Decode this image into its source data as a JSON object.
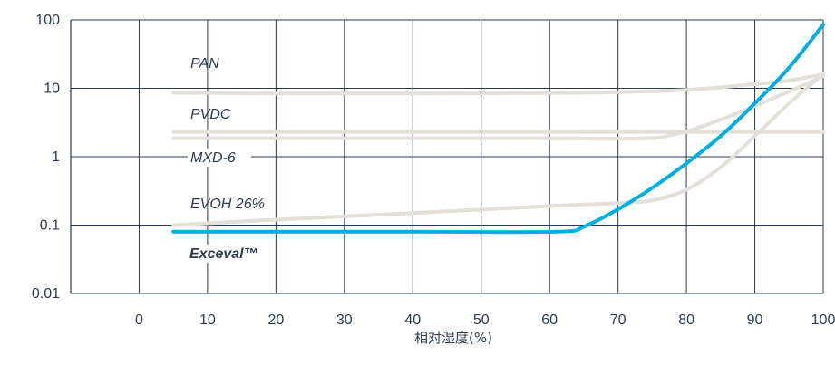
{
  "chart_data": {
    "type": "line",
    "xlabel": "相对湿度(%)",
    "ylabel": "",
    "title": "",
    "x_ticks": [
      "0",
      "10",
      "20",
      "30",
      "40",
      "50",
      "60",
      "70",
      "80",
      "90",
      "100"
    ],
    "y_ticks": [
      "0.01",
      "0.1",
      "1",
      "10",
      "100"
    ],
    "xlim": [
      -10,
      100
    ],
    "ylim": [
      0.01,
      100
    ],
    "y_scale": "log",
    "grid": "both",
    "colors": {
      "highlight": "#00afe0",
      "other": "#e3e0da",
      "axis": "#2b3a55",
      "grid": "#2b3a55"
    },
    "series": [
      {
        "name": "PAN",
        "highlight": false,
        "points": [
          [
            5,
            8.6
          ],
          [
            20,
            8.4
          ],
          [
            40,
            8.4
          ],
          [
            60,
            8.5
          ],
          [
            70,
            8.8
          ],
          [
            80,
            9.5
          ],
          [
            88,
            11
          ],
          [
            95,
            13
          ],
          [
            100,
            16
          ]
        ]
      },
      {
        "name": "PVDC",
        "highlight": false,
        "points": [
          [
            5,
            2.3
          ],
          [
            20,
            2.3
          ],
          [
            40,
            2.3
          ],
          [
            60,
            2.3
          ],
          [
            74,
            2.3
          ],
          [
            80,
            2.3
          ],
          [
            90,
            2.3
          ],
          [
            100,
            2.3
          ]
        ]
      },
      {
        "name": "MXD-6",
        "highlight": false,
        "points": [
          [
            5,
            1.85
          ],
          [
            20,
            1.85
          ],
          [
            40,
            1.85
          ],
          [
            60,
            1.85
          ],
          [
            74,
            1.85
          ],
          [
            78,
            2.1
          ],
          [
            82,
            2.7
          ],
          [
            86,
            3.8
          ],
          [
            90,
            5.5
          ],
          [
            95,
            9
          ],
          [
            100,
            15
          ]
        ]
      },
      {
        "name": "EVOH 26%",
        "highlight": false,
        "points": [
          [
            5,
            0.1
          ],
          [
            20,
            0.12
          ],
          [
            40,
            0.15
          ],
          [
            60,
            0.19
          ],
          [
            70,
            0.21
          ],
          [
            75,
            0.23
          ],
          [
            80,
            0.33
          ],
          [
            85,
            0.7
          ],
          [
            90,
            2
          ],
          [
            95,
            6
          ],
          [
            100,
            16
          ]
        ]
      },
      {
        "name": "Exceval™",
        "highlight": true,
        "points": [
          [
            5,
            0.08
          ],
          [
            20,
            0.08
          ],
          [
            40,
            0.08
          ],
          [
            61,
            0.08
          ],
          [
            65,
            0.095
          ],
          [
            70,
            0.17
          ],
          [
            75,
            0.35
          ],
          [
            80,
            0.8
          ],
          [
            85,
            2
          ],
          [
            90,
            6
          ],
          [
            95,
            20
          ],
          [
            100,
            85
          ]
        ]
      }
    ]
  }
}
